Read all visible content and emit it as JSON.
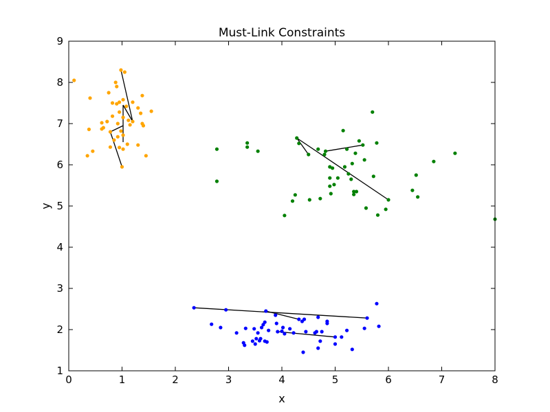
{
  "chart_data": {
    "type": "scatter",
    "title": "Must-Link Constraints",
    "xlabel": "x",
    "ylabel": "y",
    "xlim": [
      0,
      8
    ],
    "ylim": [
      1,
      9
    ],
    "xticks": [
      "0",
      "1",
      "2",
      "3",
      "4",
      "5",
      "6",
      "7",
      "8"
    ],
    "yticks": [
      "1",
      "2",
      "3",
      "4",
      "5",
      "6",
      "7",
      "8",
      "9"
    ],
    "grid": false,
    "series": [
      {
        "color": "#ffa500",
        "points": [
          [
            0.1,
            8.05
          ],
          [
            0.98,
            8.3
          ],
          [
            1.05,
            8.25
          ],
          [
            0.88,
            8.0
          ],
          [
            0.75,
            7.75
          ],
          [
            0.9,
            7.9
          ],
          [
            1.38,
            7.68
          ],
          [
            0.4,
            7.62
          ],
          [
            1.02,
            7.58
          ],
          [
            0.95,
            7.52
          ],
          [
            1.2,
            7.52
          ],
          [
            0.82,
            7.5
          ],
          [
            0.9,
            7.48
          ],
          [
            1.08,
            7.42
          ],
          [
            1.3,
            7.38
          ],
          [
            1.55,
            7.3
          ],
          [
            0.95,
            7.28
          ],
          [
            1.35,
            7.25
          ],
          [
            0.82,
            7.18
          ],
          [
            1.02,
            7.15
          ],
          [
            0.62,
            7.02
          ],
          [
            0.72,
            7.05
          ],
          [
            1.12,
            7.08
          ],
          [
            1.2,
            7.05
          ],
          [
            0.92,
            7.0
          ],
          [
            1.38,
            7.0
          ],
          [
            1.4,
            6.95
          ],
          [
            1.15,
            6.97
          ],
          [
            0.65,
            6.9
          ],
          [
            0.62,
            6.87
          ],
          [
            0.38,
            6.86
          ],
          [
            0.98,
            6.82
          ],
          [
            0.78,
            6.8
          ],
          [
            1.02,
            6.72
          ],
          [
            0.92,
            6.68
          ],
          [
            0.85,
            6.6
          ],
          [
            1.1,
            6.5
          ],
          [
            1.3,
            6.48
          ],
          [
            0.78,
            6.43
          ],
          [
            0.95,
            6.42
          ],
          [
            1.02,
            6.38
          ],
          [
            0.45,
            6.33
          ],
          [
            0.35,
            6.22
          ],
          [
            1.45,
            6.22
          ],
          [
            1.0,
            5.95
          ]
        ]
      },
      {
        "color": "#008000",
        "points": [
          [
            2.78,
            6.38
          ],
          [
            2.78,
            5.6
          ],
          [
            3.35,
            6.53
          ],
          [
            3.35,
            6.43
          ],
          [
            3.55,
            6.33
          ],
          [
            4.05,
            4.77
          ],
          [
            4.2,
            5.12
          ],
          [
            4.25,
            5.27
          ],
          [
            4.28,
            6.65
          ],
          [
            4.32,
            6.52
          ],
          [
            4.5,
            6.25
          ],
          [
            4.52,
            5.15
          ],
          [
            4.68,
            6.38
          ],
          [
            4.72,
            5.18
          ],
          [
            4.82,
            6.33
          ],
          [
            4.8,
            6.25
          ],
          [
            4.9,
            5.95
          ],
          [
            4.9,
            5.68
          ],
          [
            4.9,
            5.48
          ],
          [
            4.92,
            5.3
          ],
          [
            4.95,
            5.92
          ],
          [
            4.98,
            5.52
          ],
          [
            5.05,
            5.68
          ],
          [
            5.15,
            6.83
          ],
          [
            5.18,
            5.95
          ],
          [
            5.22,
            6.38
          ],
          [
            5.25,
            5.78
          ],
          [
            5.3,
            5.65
          ],
          [
            5.32,
            6.03
          ],
          [
            5.35,
            5.35
          ],
          [
            5.35,
            5.28
          ],
          [
            5.38,
            6.28
          ],
          [
            5.4,
            5.35
          ],
          [
            5.45,
            6.58
          ],
          [
            5.52,
            6.48
          ],
          [
            5.55,
            6.12
          ],
          [
            5.58,
            4.95
          ],
          [
            5.7,
            7.28
          ],
          [
            5.72,
            5.72
          ],
          [
            5.78,
            6.53
          ],
          [
            5.8,
            4.78
          ],
          [
            5.95,
            4.92
          ],
          [
            6.0,
            5.15
          ],
          [
            6.45,
            5.38
          ],
          [
            6.52,
            5.75
          ],
          [
            6.55,
            5.22
          ],
          [
            6.85,
            6.08
          ],
          [
            7.25,
            6.28
          ],
          [
            8.0,
            4.68
          ]
        ]
      },
      {
        "color": "#0000ff",
        "points": [
          [
            2.35,
            2.53
          ],
          [
            2.68,
            2.13
          ],
          [
            2.95,
            2.48
          ],
          [
            2.85,
            2.05
          ],
          [
            3.15,
            1.92
          ],
          [
            3.28,
            1.68
          ],
          [
            3.3,
            1.62
          ],
          [
            3.32,
            2.03
          ],
          [
            3.45,
            1.72
          ],
          [
            3.48,
            2.02
          ],
          [
            3.5,
            1.65
          ],
          [
            3.52,
            1.78
          ],
          [
            3.55,
            1.92
          ],
          [
            3.58,
            1.73
          ],
          [
            3.6,
            1.78
          ],
          [
            3.62,
            2.05
          ],
          [
            3.65,
            2.12
          ],
          [
            3.68,
            2.18
          ],
          [
            3.68,
            1.72
          ],
          [
            3.7,
            2.45
          ],
          [
            3.72,
            1.7
          ],
          [
            3.75,
            1.98
          ],
          [
            3.88,
            2.35
          ],
          [
            3.9,
            2.15
          ],
          [
            3.92,
            1.95
          ],
          [
            4.0,
            1.96
          ],
          [
            4.02,
            2.05
          ],
          [
            4.05,
            1.9
          ],
          [
            4.15,
            2.02
          ],
          [
            4.22,
            1.92
          ],
          [
            4.32,
            2.25
          ],
          [
            4.38,
            2.2
          ],
          [
            4.4,
            1.45
          ],
          [
            4.42,
            2.25
          ],
          [
            4.45,
            1.95
          ],
          [
            4.62,
            1.92
          ],
          [
            4.65,
            1.95
          ],
          [
            4.68,
            2.3
          ],
          [
            4.68,
            1.55
          ],
          [
            4.72,
            1.72
          ],
          [
            4.75,
            1.95
          ],
          [
            4.85,
            2.15
          ],
          [
            4.85,
            2.2
          ],
          [
            5.0,
            1.65
          ],
          [
            5.0,
            1.82
          ],
          [
            5.12,
            1.82
          ],
          [
            5.22,
            1.98
          ],
          [
            5.32,
            1.52
          ],
          [
            5.55,
            2.03
          ],
          [
            5.6,
            2.28
          ],
          [
            5.78,
            2.63
          ],
          [
            5.82,
            2.08
          ]
        ]
      }
    ],
    "constraint_color": "#000000",
    "constraints": [
      [
        [
          0.98,
          8.3
        ],
        [
          1.2,
          7.05
        ]
      ],
      [
        [
          1.2,
          7.05
        ],
        [
          1.02,
          7.45
        ]
      ],
      [
        [
          1.02,
          7.45
        ],
        [
          1.02,
          6.55
        ]
      ],
      [
        [
          1.02,
          6.95
        ],
        [
          0.78,
          6.8
        ]
      ],
      [
        [
          0.78,
          6.8
        ],
        [
          1.0,
          5.95
        ]
      ],
      [
        [
          4.28,
          6.65
        ],
        [
          6.0,
          5.15
        ]
      ],
      [
        [
          4.28,
          6.65
        ],
        [
          4.5,
          6.25
        ]
      ],
      [
        [
          4.82,
          6.33
        ],
        [
          5.52,
          6.48
        ]
      ],
      [
        [
          2.35,
          2.53
        ],
        [
          5.6,
          2.28
        ]
      ],
      [
        [
          3.7,
          2.45
        ],
        [
          4.32,
          2.25
        ]
      ],
      [
        [
          3.92,
          1.95
        ],
        [
          5.0,
          1.82
        ]
      ]
    ]
  }
}
